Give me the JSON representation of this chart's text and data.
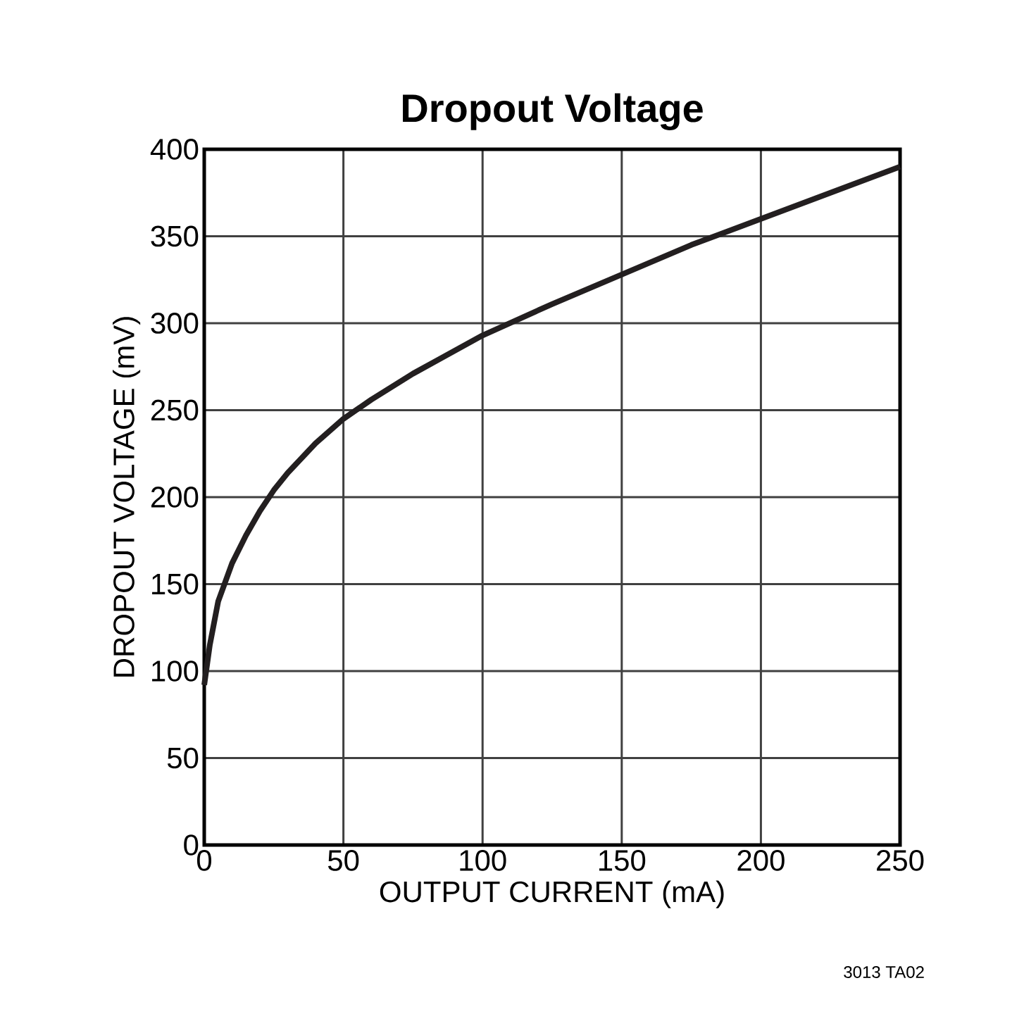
{
  "chart_data": {
    "type": "line",
    "title": "Dropout Voltage",
    "xlabel": "OUTPUT CURRENT (mA)",
    "ylabel": "DROPOUT VOLTAGE (mV)",
    "annotations": [
      "3013 TA02"
    ],
    "x": [
      0,
      2,
      5,
      10,
      15,
      20,
      25,
      30,
      40,
      50,
      60,
      75,
      100,
      125,
      150,
      175,
      200,
      225,
      250
    ],
    "series": [
      {
        "color": "#231f20",
        "values": [
          92,
          115,
          140,
          162,
          178,
          192,
          204,
          214,
          231,
          245,
          256,
          271,
          293,
          311,
          328,
          345,
          360,
          375,
          390
        ]
      }
    ],
    "xlim": [
      0,
      250
    ],
    "ylim": [
      0,
      400
    ],
    "xticks": [
      0,
      50,
      100,
      150,
      200,
      250
    ],
    "yticks": [
      0,
      50,
      100,
      150,
      200,
      250,
      300,
      350,
      400
    ],
    "grid": true,
    "marker": "none",
    "line_style": "solid"
  }
}
